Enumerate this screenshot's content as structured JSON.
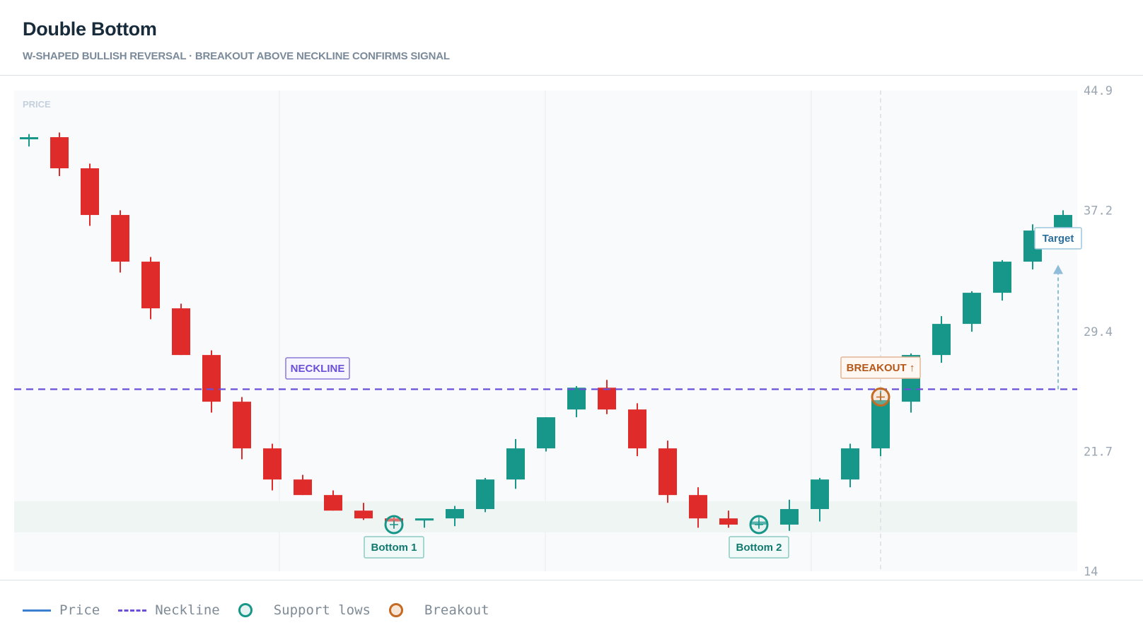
{
  "title": "Double Bottom",
  "subtitle": "W-SHAPED BULLISH REVERSAL · BREAKOUT ABOVE NECKLINE CONFIRMS SIGNAL",
  "colors": {
    "bull": "#17968a",
    "bear": "#e02b2b",
    "neckline": "#6b4fd8",
    "support_zone": "#eef5f3",
    "breakout": "#c46a22",
    "target": "#8fbcd8"
  },
  "legend": [
    {
      "label": "Price",
      "icon": "solid-line"
    },
    {
      "label": "Neckline",
      "icon": "dashed-line"
    },
    {
      "label": "Support lows",
      "icon": "teal-circle"
    },
    {
      "label": "Breakout",
      "icon": "orange-circle"
    }
  ],
  "chart_data": {
    "type": "candlestick",
    "y_axis_label": "PRICE",
    "ylim": [
      14,
      44.9
    ],
    "yticks": [
      "44.9",
      "37.2",
      "29.4",
      "21.7",
      "14"
    ],
    "neckline": 25.7,
    "support_zone": [
      16.5,
      18.5
    ],
    "candles": [
      {
        "o": 41.9,
        "h": 42.1,
        "l": 41.3,
        "c": 41.9
      },
      {
        "o": 41.9,
        "h": 42.2,
        "l": 39.4,
        "c": 39.9
      },
      {
        "o": 39.9,
        "h": 40.2,
        "l": 36.2,
        "c": 36.9
      },
      {
        "o": 36.9,
        "h": 37.2,
        "l": 33.2,
        "c": 33.9
      },
      {
        "o": 33.9,
        "h": 34.2,
        "l": 30.2,
        "c": 30.9
      },
      {
        "o": 30.9,
        "h": 31.2,
        "l": 27.9,
        "c": 27.9
      },
      {
        "o": 27.9,
        "h": 28.2,
        "l": 24.2,
        "c": 24.9
      },
      {
        "o": 24.9,
        "h": 25.2,
        "l": 21.2,
        "c": 21.9
      },
      {
        "o": 21.9,
        "h": 22.2,
        "l": 19.2,
        "c": 19.9
      },
      {
        "o": 19.9,
        "h": 20.2,
        "l": 18.9,
        "c": 18.9
      },
      {
        "o": 18.9,
        "h": 19.2,
        "l": 17.9,
        "c": 17.9
      },
      {
        "o": 17.9,
        "h": 18.4,
        "l": 17.3,
        "c": 17.4
      },
      {
        "o": 17.4,
        "h": 17.6,
        "l": 16.8,
        "c": 17.2
      },
      {
        "o": 17.3,
        "h": 17.3,
        "l": 16.8,
        "c": 17.4
      },
      {
        "o": 17.4,
        "h": 18.2,
        "l": 16.9,
        "c": 18.0
      },
      {
        "o": 18.0,
        "h": 20.0,
        "l": 17.8,
        "c": 19.9
      },
      {
        "o": 19.9,
        "h": 22.5,
        "l": 19.3,
        "c": 21.9
      },
      {
        "o": 21.9,
        "h": 23.9,
        "l": 21.7,
        "c": 23.9
      },
      {
        "o": 24.4,
        "h": 25.9,
        "l": 23.9,
        "c": 25.8
      },
      {
        "o": 25.8,
        "h": 26.3,
        "l": 24.1,
        "c": 24.4
      },
      {
        "o": 24.4,
        "h": 24.8,
        "l": 21.4,
        "c": 21.9
      },
      {
        "o": 21.9,
        "h": 22.4,
        "l": 18.4,
        "c": 18.9
      },
      {
        "o": 18.9,
        "h": 19.4,
        "l": 16.8,
        "c": 17.4
      },
      {
        "o": 17.4,
        "h": 17.9,
        "l": 16.8,
        "c": 17.0
      },
      {
        "o": 17.0,
        "h": 17.6,
        "l": 16.8,
        "c": 17.2
      },
      {
        "o": 17.0,
        "h": 18.6,
        "l": 16.6,
        "c": 18.0
      },
      {
        "o": 18.0,
        "h": 20.0,
        "l": 17.2,
        "c": 19.9
      },
      {
        "o": 19.9,
        "h": 22.2,
        "l": 19.4,
        "c": 21.9
      },
      {
        "o": 21.9,
        "h": 25.6,
        "l": 21.4,
        "c": 25.0
      },
      {
        "o": 24.9,
        "h": 28.0,
        "l": 24.2,
        "c": 27.9
      },
      {
        "o": 27.9,
        "h": 30.4,
        "l": 27.4,
        "c": 29.9
      },
      {
        "o": 29.9,
        "h": 32.0,
        "l": 29.4,
        "c": 31.9
      },
      {
        "o": 31.9,
        "h": 34.0,
        "l": 31.4,
        "c": 33.9
      },
      {
        "o": 33.9,
        "h": 36.3,
        "l": 33.4,
        "c": 35.9
      },
      {
        "o": 35.9,
        "h": 37.2,
        "l": 35.4,
        "c": 36.9
      }
    ],
    "annotations": [
      {
        "type": "label",
        "text": "NECKLINE"
      },
      {
        "type": "support",
        "text": "Bottom 1",
        "candle": 12,
        "price": 17.0
      },
      {
        "type": "support",
        "text": "Bottom 2",
        "candle": 24,
        "price": 17.0
      },
      {
        "type": "breakout",
        "text": "BREAKOUT ↑",
        "candle": 28,
        "price": 25.2
      },
      {
        "type": "target",
        "text": "Target",
        "from": 25.7,
        "to": 33.7
      }
    ]
  }
}
